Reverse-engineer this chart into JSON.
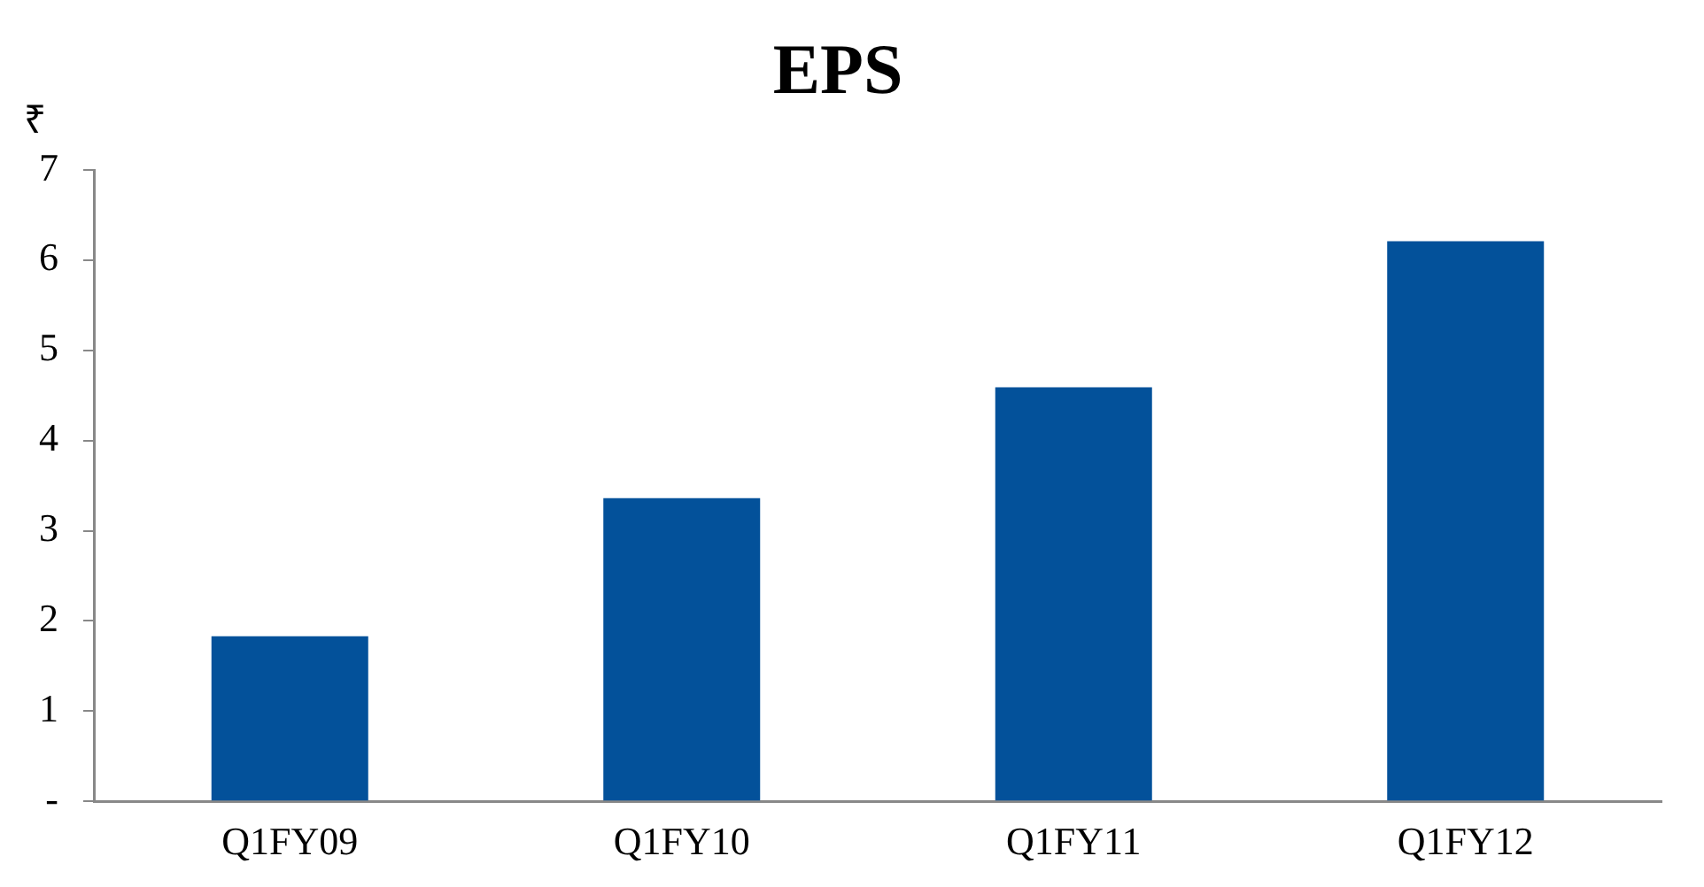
{
  "chart_data": {
    "type": "bar",
    "title": "EPS",
    "ylabel": "₹",
    "categories": [
      "Q1FY09",
      "Q1FY10",
      "Q1FY11",
      "Q1FY12"
    ],
    "values": [
      1.83,
      3.36,
      4.59,
      6.21
    ],
    "color": "#03519a",
    "ylim": [
      0,
      7
    ],
    "yticks": [
      {
        "value": 0,
        "label": "-"
      },
      1,
      2,
      3,
      4,
      5,
      6,
      7
    ],
    "grid": false,
    "legend": false
  }
}
